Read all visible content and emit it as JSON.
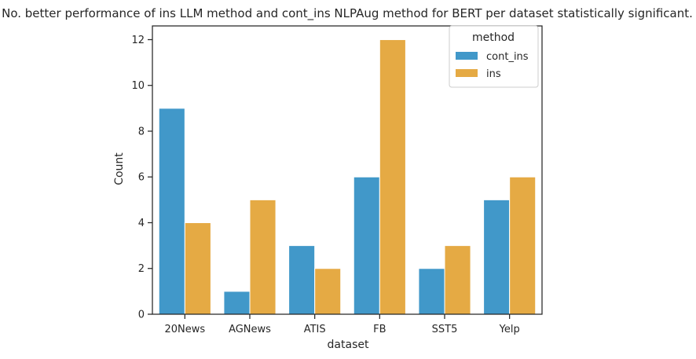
{
  "chart_data": {
    "type": "bar",
    "title": "No. better performance of ins LLM method and cont_ins NLPAug method for BERT per dataset statistically significant.",
    "xlabel": "dataset",
    "ylabel": "Count",
    "categories": [
      "20News",
      "AGNews",
      "ATIS",
      "FB",
      "SST5",
      "Yelp"
    ],
    "series": [
      {
        "name": "cont_ins",
        "values": [
          9,
          1,
          3,
          6,
          2,
          5
        ],
        "color": "#4198c9"
      },
      {
        "name": "ins",
        "values": [
          4,
          5,
          2,
          12,
          3,
          6
        ],
        "color": "#e5aa44"
      }
    ],
    "ylim": [
      0,
      12.6
    ],
    "yticks": [
      0,
      2,
      4,
      6,
      8,
      10,
      12
    ],
    "grid": false,
    "legend": {
      "title": "method",
      "placement": "top-right"
    }
  }
}
